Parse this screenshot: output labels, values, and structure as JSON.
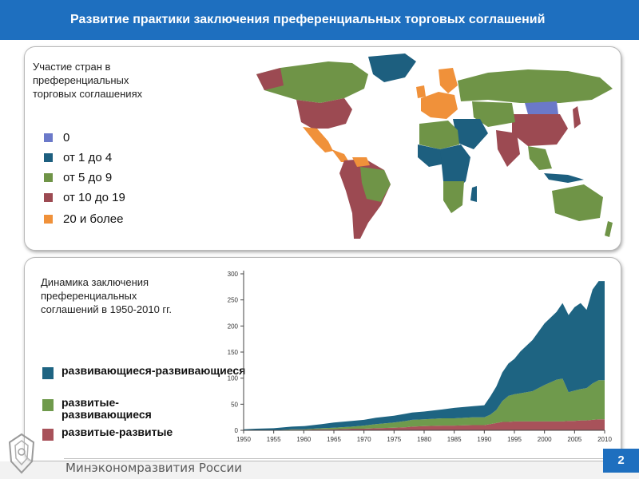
{
  "header": {
    "title": "Развитие практики заключения преференциальных торговых соглашений"
  },
  "map": {
    "title_lines": [
      "Участие стран в",
      "преференциальных",
      "торговых соглашениях"
    ],
    "legend": [
      {
        "label": "0",
        "color": "#6b79c9"
      },
      {
        "label": "от 1 до 4",
        "color": "#1d5f7f"
      },
      {
        "label": "от 5 до 9",
        "color": "#6f9447"
      },
      {
        "label": "от 10 до 19",
        "color": "#9c4a52"
      },
      {
        "label": "20 и более",
        "color": "#f0913a"
      }
    ]
  },
  "chart_title_lines": [
    "Динамика заключения",
    "преференциальных",
    "соглашений в 1950-2010 гг."
  ],
  "chart_data": {
    "type": "area",
    "stacked": true,
    "x": [
      1950,
      1952,
      1955,
      1958,
      1960,
      1963,
      1965,
      1968,
      1970,
      1972,
      1975,
      1977,
      1978,
      1980,
      1983,
      1985,
      1988,
      1990,
      1991,
      1992,
      1993,
      1994,
      1995,
      1996,
      1998,
      2000,
      2002,
      2003,
      2004,
      2005,
      2006,
      2007,
      2008,
      2009,
      2010
    ],
    "series": [
      {
        "name": "развитые-развитые",
        "color": "#a8525a",
        "values": [
          0,
          0,
          0,
          1,
          1,
          2,
          2,
          3,
          3,
          4,
          5,
          6,
          7,
          8,
          9,
          9,
          10,
          10,
          12,
          14,
          16,
          16,
          17,
          17,
          17,
          17,
          17,
          17,
          18,
          18,
          19,
          19,
          20,
          21,
          21
        ]
      },
      {
        "name": "развитые-развивающиеся",
        "color": "#6f9a4c",
        "values": [
          0,
          0,
          0,
          1,
          1,
          2,
          3,
          4,
          6,
          8,
          10,
          12,
          13,
          13,
          14,
          14,
          15,
          15,
          18,
          25,
          40,
          50,
          52,
          54,
          58,
          70,
          80,
          82,
          55,
          58,
          60,
          62,
          70,
          75,
          75
        ]
      },
      {
        "name": "развивающиеся-развивающиеся",
        "color": "#1e6482",
        "values": [
          2,
          3,
          4,
          5,
          6,
          8,
          10,
          11,
          11,
          12,
          13,
          14,
          14,
          15,
          17,
          20,
          21,
          23,
          35,
          45,
          55,
          62,
          68,
          80,
          98,
          118,
          130,
          145,
          148,
          160,
          165,
          150,
          180,
          190,
          190
        ]
      }
    ],
    "xticks": [
      1950,
      1955,
      1960,
      1965,
      1970,
      1975,
      1980,
      1985,
      1990,
      1995,
      2000,
      2005,
      2010
    ],
    "yticks": [
      0,
      50,
      100,
      150,
      200,
      250,
      300
    ],
    "xlim": [
      1950,
      2010
    ],
    "ylim": [
      0,
      300
    ],
    "grid": false,
    "legend_placement": "left"
  },
  "footer": {
    "ministry": "Минэкономразвития России",
    "page": "2"
  }
}
